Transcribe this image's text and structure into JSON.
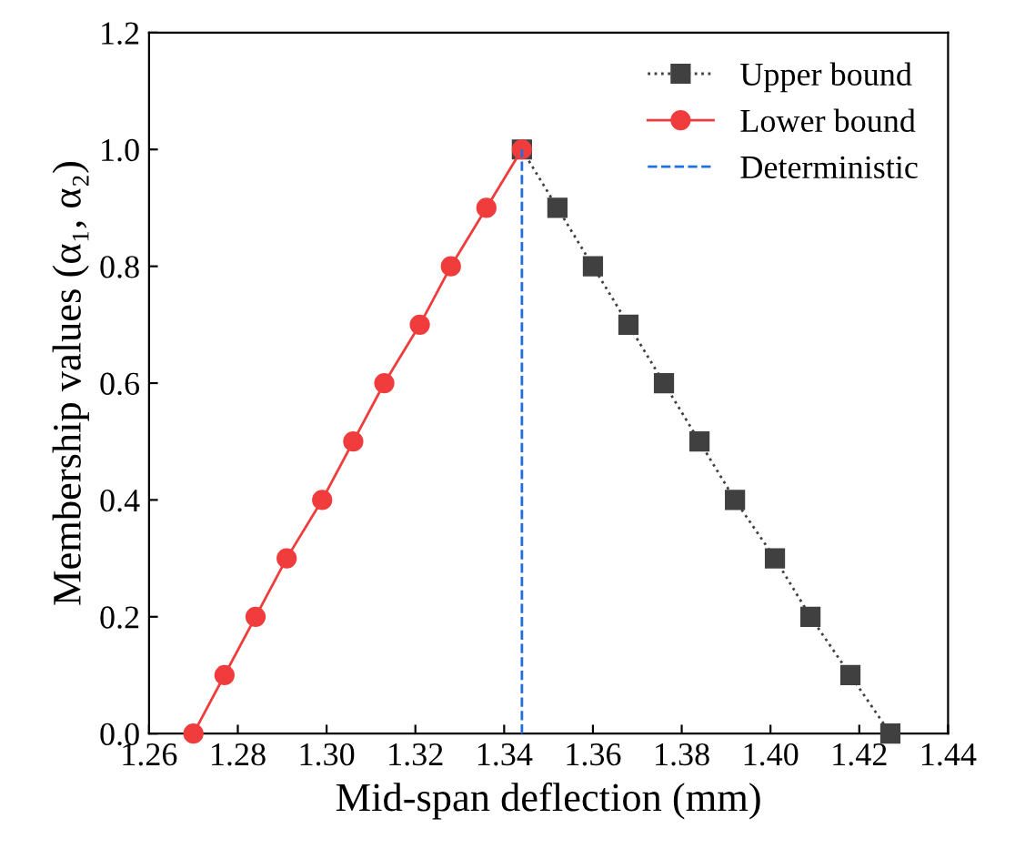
{
  "chart_data": {
    "type": "line",
    "xlabel": "Mid-span deflection (mm)",
    "ylabel": "Membership values (α₁, α₂)",
    "xlim": [
      1.26,
      1.44
    ],
    "xticks": [
      1.26,
      1.28,
      {
        "value": 1.3,
        "label": "1.30"
      },
      1.32,
      1.34,
      1.36,
      1.38,
      {
        "value": 1.4,
        "label": "1.40"
      },
      1.42,
      1.44
    ],
    "ylim": [
      0,
      1.2
    ],
    "yticks": [
      {
        "value": 0,
        "label": "0.0"
      },
      0.2,
      0.4,
      0.6,
      0.8,
      {
        "value": 1,
        "label": "1.0"
      },
      1.2
    ],
    "grid": false,
    "legend": "top right",
    "series": [
      {
        "name": "Upper bound",
        "color": "#404040",
        "marker": "square",
        "line_style": "dotted",
        "x": [
          1.344,
          1.352,
          1.36,
          1.368,
          1.376,
          1.384,
          1.392,
          1.401,
          1.409,
          1.418,
          1.427
        ],
        "values": [
          1.0,
          0.9,
          0.8,
          0.7,
          0.6,
          0.5,
          0.4,
          0.3,
          0.2,
          0.1,
          0.0
        ]
      },
      {
        "name": "Lower bound",
        "color": "#f03c3c",
        "marker": "circle",
        "line_style": "solid",
        "x": [
          1.27,
          1.277,
          1.284,
          1.291,
          1.299,
          1.306,
          1.313,
          1.321,
          1.328,
          1.336,
          1.344
        ],
        "values": [
          0.0,
          0.1,
          0.2,
          0.3,
          0.4,
          0.5,
          0.6,
          0.7,
          0.8,
          0.9,
          1.0
        ]
      },
      {
        "name": "Deterministic",
        "color": "#1f6fe0",
        "marker": "none",
        "line_style": "dashed",
        "x": [
          1.344,
          1.344
        ],
        "values": [
          0.0,
          1.0
        ]
      }
    ]
  }
}
